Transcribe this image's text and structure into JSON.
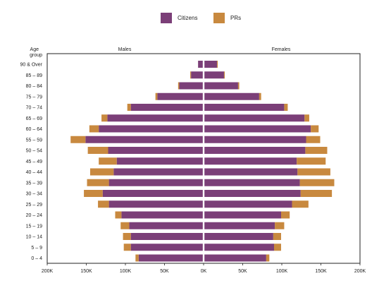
{
  "colors": {
    "citizens": "#7b3f78",
    "prs": "#c8893f"
  },
  "headers": {
    "age_group": [
      "Age",
      "group"
    ],
    "left": "Males",
    "right": "Females"
  },
  "chart_data": {
    "type": "bar",
    "orientation": "horizontal-population-pyramid",
    "stacked": true,
    "legend": {
      "position": "top-center",
      "entries": [
        "Citizens",
        "PRs"
      ]
    },
    "categories": [
      "90 & Over",
      "85 – 89",
      "80 – 84",
      "75 – 79",
      "70 – 74",
      "65 – 69",
      "60 – 64",
      "55 – 59",
      "50 – 54",
      "45 – 49",
      "40 – 44",
      "35 – 39",
      "30 – 34",
      "25 – 29",
      "20 – 24",
      "15 – 19",
      "10 – 14",
      "5 – 9",
      "0 – 4"
    ],
    "x_ticks": [
      "200K",
      "150K",
      "100K",
      "50K",
      "0K",
      "50K",
      "100K",
      "150K",
      "200K"
    ],
    "xlim": [
      -200000,
      200000
    ],
    "grid": false,
    "series": [
      {
        "name": "Citizens",
        "side": "Males",
        "values": [
          6000,
          15000,
          30000,
          58000,
          92000,
          122000,
          133000,
          150000,
          121000,
          110000,
          114000,
          120000,
          128000,
          120000,
          104000,
          94000,
          92000,
          92000,
          82000
        ]
      },
      {
        "name": "PRs",
        "side": "Males",
        "values": [
          0,
          1000,
          1500,
          2500,
          4500,
          7500,
          12000,
          19000,
          26000,
          23000,
          30000,
          28000,
          24000,
          14000,
          8000,
          11000,
          10000,
          9000,
          4000
        ]
      },
      {
        "name": "Citizens",
        "side": "Females",
        "values": [
          16000,
          25000,
          43000,
          70000,
          102000,
          128000,
          136000,
          130000,
          129000,
          118000,
          119000,
          122000,
          123000,
          112000,
          98000,
          90000,
          88000,
          89000,
          79000
        ]
      },
      {
        "name": "PRs",
        "side": "Females",
        "values": [
          1000,
          1000,
          1500,
          2500,
          4500,
          6000,
          10000,
          18000,
          28000,
          37000,
          42000,
          44000,
          40000,
          21000,
          11000,
          12000,
          10000,
          9000,
          4000
        ]
      }
    ]
  }
}
